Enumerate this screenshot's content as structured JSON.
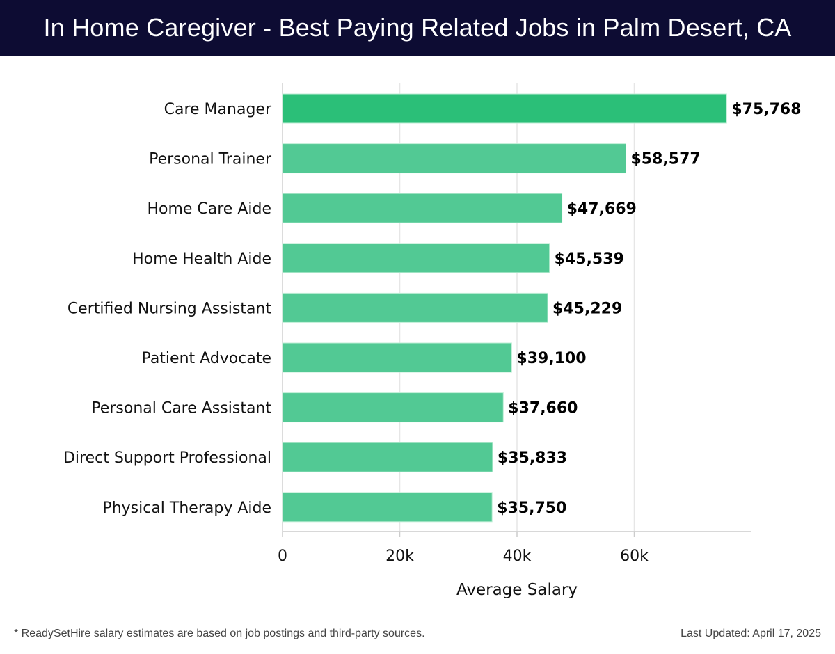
{
  "header": {
    "title": "In Home Caregiver - Best Paying Related Jobs in Palm Desert, CA"
  },
  "footer": {
    "note": "* ReadySetHire salary estimates are based on job postings and third-party sources.",
    "last_updated": "Last Updated: April 17, 2025"
  },
  "colors": {
    "header_bg": "#0d0c33",
    "bar_top": "#2bbf78",
    "bar": "#52c994"
  },
  "chart_data": {
    "type": "bar",
    "orientation": "horizontal",
    "title": "In Home Caregiver - Best Paying Related Jobs in Palm Desert, CA",
    "xlabel": "Average Salary",
    "ylabel": "",
    "xlim": [
      0,
      80000
    ],
    "grid": true,
    "xticks": [
      0,
      20000,
      40000,
      60000
    ],
    "xtick_labels": [
      "0",
      "20k",
      "40k",
      "60k"
    ],
    "categories": [
      "Care Manager",
      "Personal Trainer",
      "Home Care Aide",
      "Home Health Aide",
      "Certified Nursing Assistant",
      "Patient Advocate",
      "Personal Care Assistant",
      "Direct Support Professional",
      "Physical Therapy Aide"
    ],
    "values": [
      75768,
      58577,
      47669,
      45539,
      45229,
      39100,
      37660,
      35833,
      35750
    ],
    "value_labels": [
      "$75,768",
      "$58,577",
      "$47,669",
      "$45,539",
      "$45,229",
      "$39,100",
      "$37,660",
      "$35,833",
      "$35,750"
    ]
  }
}
